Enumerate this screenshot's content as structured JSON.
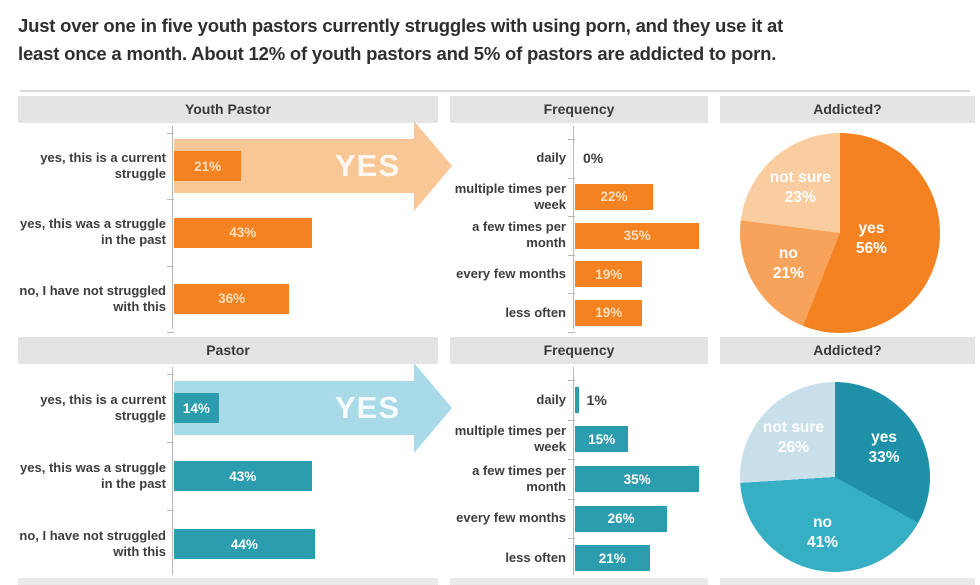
{
  "title": "Just over one in five youth pastors currently struggles with using porn, and they use it at\nleast once a month. About 12% of youth pastors and 5% of pastors are addicted to porn.",
  "colors": {
    "orange_dark": "#F58220",
    "orange_mid": "#F8A35B",
    "orange_light": "#FACDA0",
    "orange_arrow": "#F9C795",
    "teal_dark": "#2B9DAF",
    "teal_pie_yes": "#1E91A8",
    "teal_pie_no": "#36AFC5",
    "teal_pie_notsure": "#C9E0EA",
    "teal_arrow": "#A9DAE7",
    "header_bg": "#E4E4E4",
    "text_dark": "#3D3D3D"
  },
  "chart_data": [
    {
      "id": "youth_pastor_struggle",
      "type": "bar",
      "orientation": "horizontal",
      "title": "Youth Pastor",
      "categories": [
        "yes, this is a current\nstruggle",
        "yes, this was a struggle\nin the past",
        "no, I have not struggled\nwith this"
      ],
      "values": [
        21,
        43,
        36
      ],
      "unit": "%",
      "xlim": [
        0,
        100
      ],
      "grid": false,
      "bar_color": "#F58220",
      "value_color": "#FBDFBD",
      "annotation": {
        "text": "YES",
        "on_category_index": 0,
        "color": "#F9C795"
      }
    },
    {
      "id": "youth_pastor_frequency",
      "type": "bar",
      "orientation": "horizontal",
      "title": "Frequency",
      "categories": [
        "daily",
        "multiple times per\nweek",
        "a few times per\nmonth",
        "every few months",
        "less often"
      ],
      "values": [
        0,
        22,
        35,
        19,
        19
      ],
      "unit": "%",
      "xlim": [
        0,
        40
      ],
      "grid": false,
      "bar_color": "#F58220",
      "value_color": "#FBDFBD"
    },
    {
      "id": "youth_pastor_addicted",
      "type": "pie",
      "title": "Addicted?",
      "start_angle_deg": 0,
      "direction": "clockwise",
      "slices": [
        {
          "label": "yes",
          "value": 56,
          "color": "#F58220"
        },
        {
          "label": "no",
          "value": 21,
          "color": "#F8A35B"
        },
        {
          "label": "not sure",
          "value": 23,
          "color": "#FACDA0"
        }
      ]
    },
    {
      "id": "pastor_struggle",
      "type": "bar",
      "orientation": "horizontal",
      "title": "Pastor",
      "categories": [
        "yes, this is a current\nstruggle",
        "yes, this was a struggle\nin the past",
        "no, I have not struggled\nwith this"
      ],
      "values": [
        14,
        43,
        44
      ],
      "unit": "%",
      "xlim": [
        0,
        100
      ],
      "grid": false,
      "bar_color": "#2B9DAF",
      "value_color": "#FFFFFF",
      "annotation": {
        "text": "YES",
        "on_category_index": 0,
        "color": "#A9DAE7"
      }
    },
    {
      "id": "pastor_frequency",
      "type": "bar",
      "orientation": "horizontal",
      "title": "Frequency",
      "categories": [
        "daily",
        "multiple times per\nweek",
        "a few times per\nmonth",
        "every few months",
        "less often"
      ],
      "values": [
        1,
        15,
        35,
        26,
        21
      ],
      "unit": "%",
      "xlim": [
        0,
        40
      ],
      "grid": false,
      "bar_color": "#2B9DAF",
      "value_color": "#FFFFFF"
    },
    {
      "id": "pastor_addicted",
      "type": "pie",
      "title": "Addicted?",
      "start_angle_deg": 0,
      "direction": "clockwise",
      "slices": [
        {
          "label": "yes",
          "value": 33,
          "color": "#1E91A8"
        },
        {
          "label": "no",
          "value": 41,
          "color": "#36AFC5"
        },
        {
          "label": "not sure",
          "value": 26,
          "color": "#C9E0EA"
        }
      ]
    }
  ]
}
